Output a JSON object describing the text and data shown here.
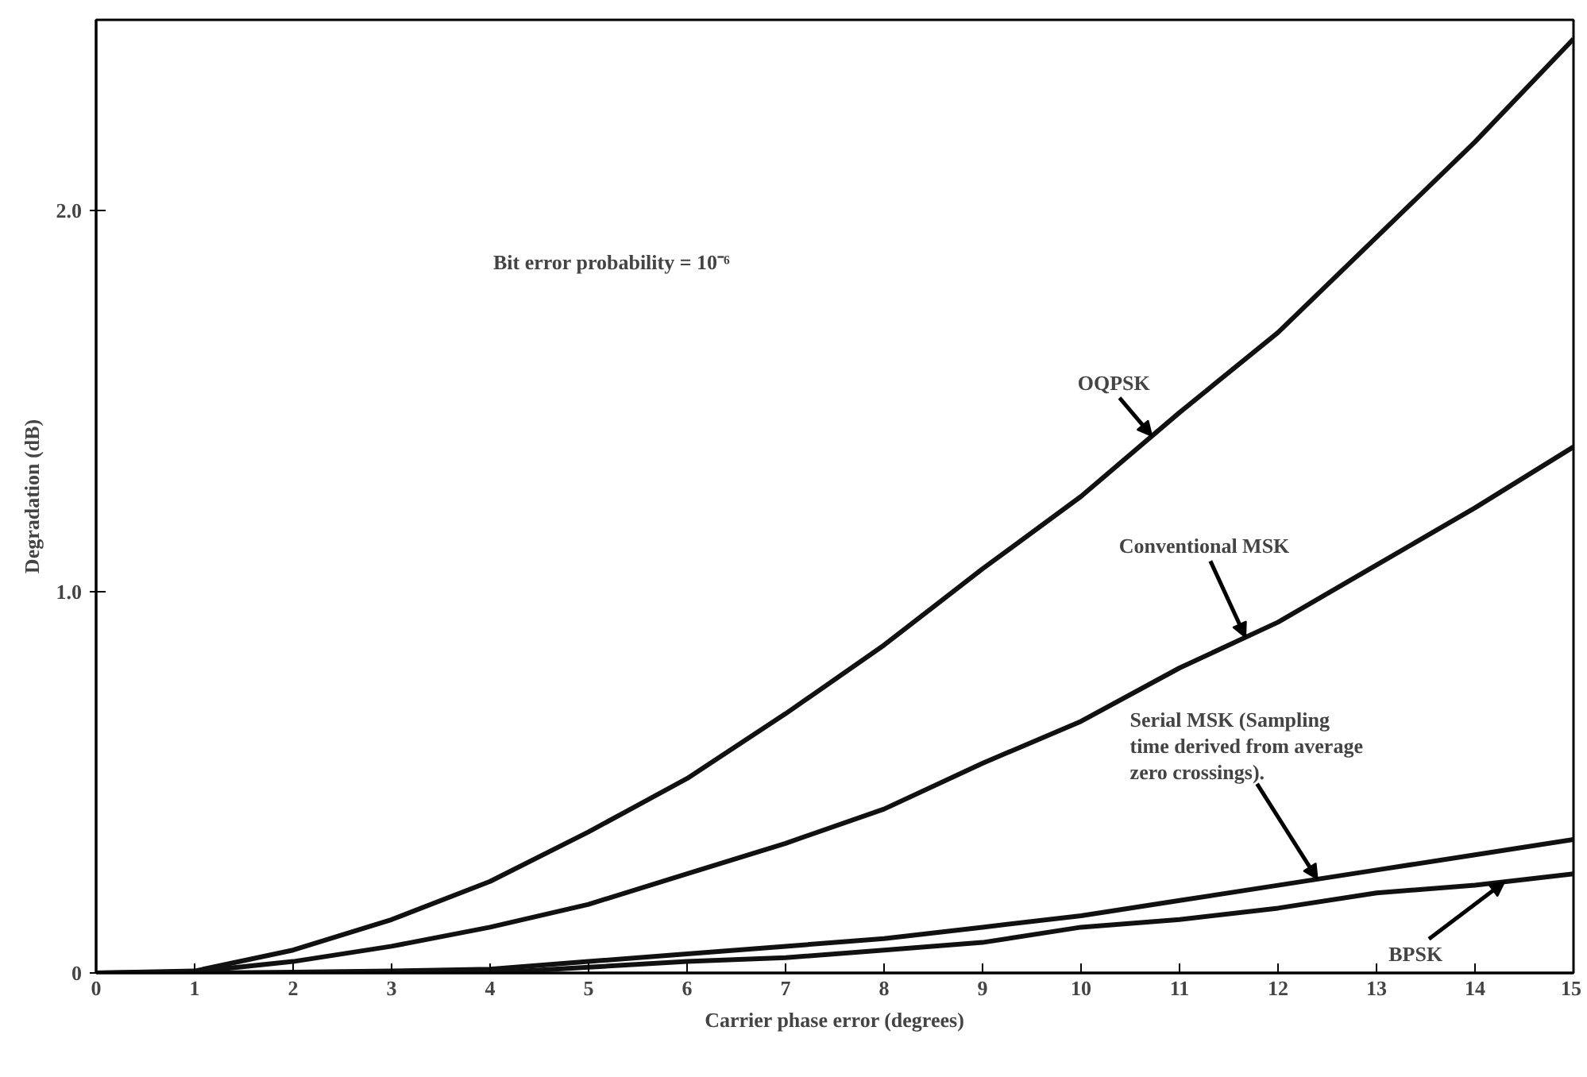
{
  "chart_data": {
    "type": "line",
    "xlabel": "Carrier phase error (degrees)",
    "ylabel": "Degradation (dB)",
    "x": [
      0,
      1,
      2,
      3,
      4,
      5,
      6,
      7,
      8,
      9,
      10,
      11,
      12,
      13,
      14,
      15
    ],
    "series": [
      {
        "name": "OQPSK",
        "color": "#111111",
        "values": [
          0,
          0.005,
          0.06,
          0.14,
          0.24,
          0.37,
          0.51,
          0.68,
          0.86,
          1.06,
          1.25,
          1.47,
          1.68,
          1.93,
          2.18,
          2.45
        ]
      },
      {
        "name": "Conventional MSK",
        "color": "#111111",
        "values": [
          0,
          0.003,
          0.03,
          0.07,
          0.12,
          0.18,
          0.26,
          0.34,
          0.43,
          0.55,
          0.66,
          0.8,
          0.92,
          1.07,
          1.22,
          1.38
        ]
      },
      {
        "name": "Serial MSK (Sampling\ntime derived from average\nzero crossings).",
        "color": "#111111",
        "values": [
          0,
          0,
          0.002,
          0.005,
          0.01,
          0.03,
          0.05,
          0.07,
          0.09,
          0.12,
          0.15,
          0.19,
          0.23,
          0.27,
          0.31,
          0.35
        ]
      },
      {
        "name": "BPSK",
        "color": "#111111",
        "values": [
          0,
          0,
          0,
          0,
          0,
          0.015,
          0.03,
          0.04,
          0.06,
          0.08,
          0.12,
          0.14,
          0.17,
          0.21,
          0.23,
          0.26
        ]
      }
    ],
    "annotations": [
      "Bit error probability = 10⁻⁶"
    ],
    "xlim": [
      0,
      15
    ],
    "ylim": [
      0,
      2.5
    ],
    "xticks": [
      0,
      1,
      2,
      3,
      4,
      5,
      6,
      7,
      8,
      9,
      10,
      11,
      12,
      13,
      14,
      15
    ],
    "yticks": [
      0,
      {
        "value": 1.0,
        "label": "1.0"
      },
      {
        "value": 2.0,
        "label": "2.0"
      }
    ],
    "grid": false,
    "legend": false,
    "marker": "none",
    "line_style": "solid"
  }
}
